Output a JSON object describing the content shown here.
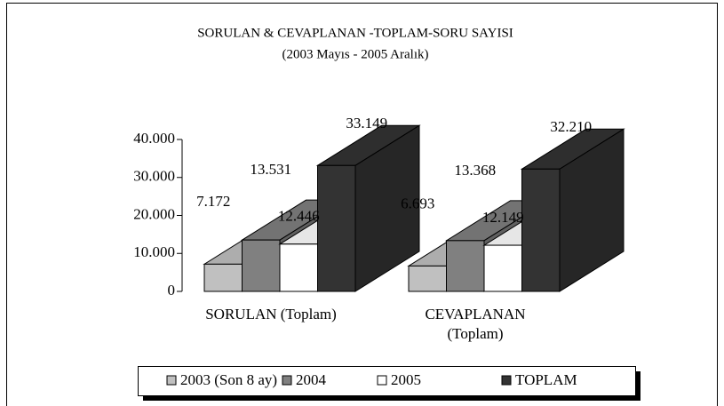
{
  "chart_data": {
    "type": "bar3d",
    "title": "SORULAN  & CEVAPLANAN -TOPLAM-SORU SAYISI",
    "subtitle": "(2003 Mayıs - 2005 Aralık)",
    "categories": [
      "SORULAN (Toplam)",
      "CEVAPLANAN (Toplam)"
    ],
    "series": [
      {
        "name": "2003 (Son 8 ay)",
        "color": "#c0c0c0",
        "values": [
          7172,
          6693
        ],
        "value_labels": [
          "7.172",
          "6.693"
        ]
      },
      {
        "name": "2004",
        "color": "#808080",
        "values": [
          13531,
          13368
        ],
        "value_labels": [
          "13.531",
          "13.368"
        ]
      },
      {
        "name": "2005",
        "color": "#ffffff",
        "values": [
          12446,
          12149
        ],
        "value_labels": [
          "12.446",
          "12.149"
        ]
      },
      {
        "name": "TOPLAM",
        "color": "#333333",
        "values": [
          33149,
          32210
        ],
        "value_labels": [
          "33.149",
          "32.210"
        ]
      }
    ],
    "ylim": [
      0,
      40000
    ],
    "yticks": [
      0,
      {
        "value": 10000,
        "label": "10.000"
      },
      {
        "value": 20000,
        "label": "20.000"
      },
      {
        "value": 30000,
        "label": "30.000"
      },
      {
        "value": 40000,
        "label": "40.000"
      }
    ],
    "legend": "bottom"
  }
}
